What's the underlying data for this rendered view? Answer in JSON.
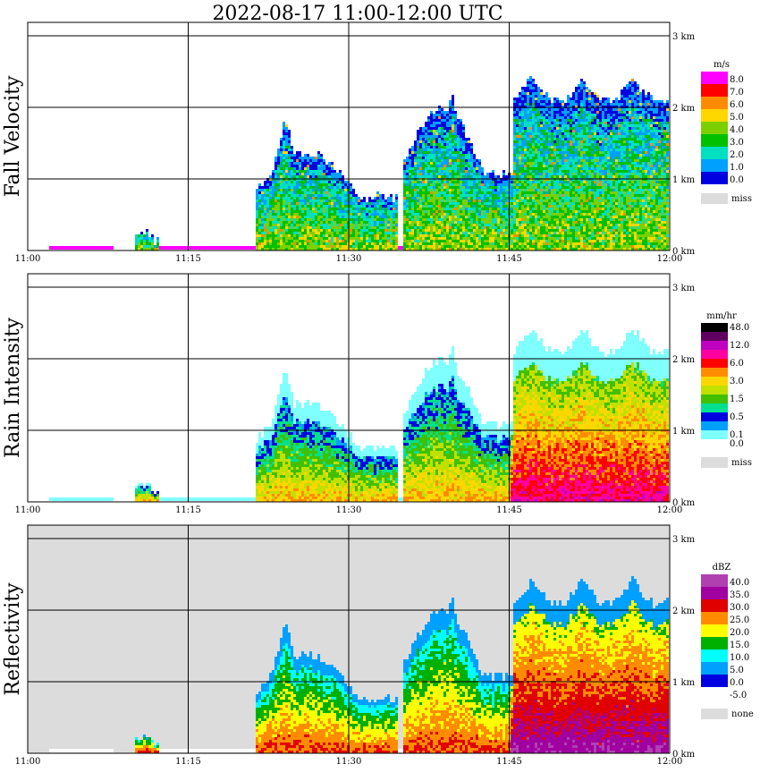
{
  "title": "2022-08-17   11:00-12:00 UTC",
  "chart_data": [
    {
      "type": "heatmap",
      "panel": "Fall Velocity",
      "ylabel": "Fall Velocity",
      "unit": "m/s",
      "x_ticks": [
        "11:00",
        "11:15",
        "11:30",
        "11:45",
        "12:00"
      ],
      "y_ticks": [
        "0 km",
        "1 km",
        "2 km",
        "3 km"
      ],
      "legend": [
        {
          "label": "8.0",
          "color": "#ff00ff"
        },
        {
          "label": "7.0",
          "color": "#ff0000"
        },
        {
          "label": "6.0",
          "color": "#ff8c00"
        },
        {
          "label": "5.0",
          "color": "#ffd700"
        },
        {
          "label": "4.0",
          "color": "#7cd000"
        },
        {
          "label": "3.0",
          "color": "#00c000"
        },
        {
          "label": "2.0",
          "color": "#00e0c0"
        },
        {
          "label": "1.0",
          "color": "#00a0ff"
        },
        {
          "label": "0.0",
          "color": "#0000e0"
        }
      ],
      "miss_label": "miss",
      "miss_color": "#dcdcdc",
      "background": "#ffffff"
    },
    {
      "type": "heatmap",
      "panel": "Rain Intensity",
      "ylabel": "Rain Intensity",
      "unit": "mm/hr",
      "x_ticks": [
        "11:00",
        "11:15",
        "11:30",
        "11:45",
        "12:00"
      ],
      "y_ticks": [
        "0 km",
        "1 km",
        "2 km",
        "3 km"
      ],
      "legend": [
        {
          "label": "48.0",
          "color": "#000000"
        },
        {
          "label": "",
          "color": "#600060"
        },
        {
          "label": "12.0",
          "color": "#c000c0"
        },
        {
          "label": "",
          "color": "#ff00a0"
        },
        {
          "label": "6.0",
          "color": "#ff0000"
        },
        {
          "label": "",
          "color": "#ff8c00"
        },
        {
          "label": "3.0",
          "color": "#ffd700"
        },
        {
          "label": "",
          "color": "#c0e000"
        },
        {
          "label": "1.5",
          "color": "#40c000"
        },
        {
          "label": "",
          "color": "#00e090"
        },
        {
          "label": "0.5",
          "color": "#0000e0"
        },
        {
          "label": "",
          "color": "#00a0ff"
        },
        {
          "label": "0.1",
          "color": "#80ffff"
        },
        {
          "label": "0.0",
          "color": "#ffffff"
        }
      ],
      "miss_label": "miss",
      "miss_color": "#dcdcdc",
      "background": "#ffffff"
    },
    {
      "type": "heatmap",
      "panel": "Reflectivity",
      "ylabel": "Reflectivity",
      "unit": "dBZ",
      "x_ticks": [
        "11:00",
        "11:15",
        "11:30",
        "11:45",
        "12:00"
      ],
      "y_ticks": [
        "0 km",
        "1 km",
        "2 km",
        "3 km"
      ],
      "legend": [
        {
          "label": "40.0",
          "color": "#b040b0"
        },
        {
          "label": "35.0",
          "color": "#a000a0"
        },
        {
          "label": "30.0",
          "color": "#e00000"
        },
        {
          "label": "25.0",
          "color": "#ff8c00"
        },
        {
          "label": "20.0",
          "color": "#ffff00"
        },
        {
          "label": "15.0",
          "color": "#00b000"
        },
        {
          "label": "10.0",
          "color": "#00ffff"
        },
        {
          "label": "5.0",
          "color": "#00a0ff"
        },
        {
          "label": "0.0",
          "color": "#0000e0"
        },
        {
          "label": "-5.0",
          "color": "#ffffff"
        }
      ],
      "miss_label": "none",
      "miss_color": "#dcdcdc",
      "background": "#dcdcdc"
    }
  ]
}
